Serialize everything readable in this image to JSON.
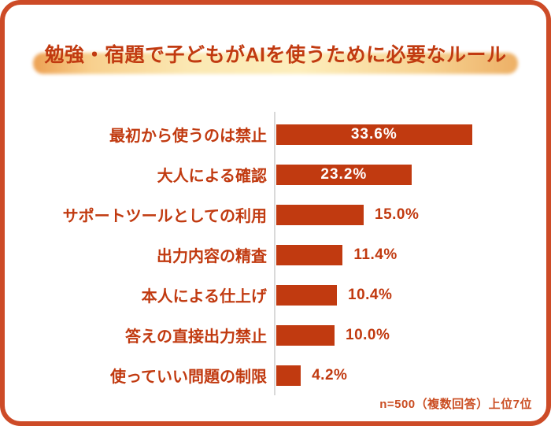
{
  "page": {
    "title": "勉強・宿題で子どもがAIを使うために必要なルール",
    "footnote": "n=500（複数回答）上位7位"
  },
  "chart_data": {
    "type": "bar",
    "orientation": "horizontal",
    "title": "勉強・宿題で子どもがAIを使うために必要なルール",
    "categories": [
      "最初から使うのは禁止",
      "大人による確認",
      "サポートツールとしての利用",
      "出力内容の精査",
      "本人による仕上げ",
      "答えの直接出力禁止",
      "使っていい問題の制限"
    ],
    "values": [
      33.6,
      23.2,
      15.0,
      11.4,
      10.4,
      10.0,
      4.2
    ],
    "value_labels": [
      "33.6%",
      "23.2%",
      "15.0%",
      "11.4%",
      "10.4%",
      "10.0%",
      "4.2%"
    ],
    "xlim": [
      0,
      35
    ],
    "grid": false,
    "legend": false,
    "footnote": "n=500（複数回答）上位7位"
  },
  "colors": {
    "bar": "#c13a10",
    "category_label": "#c13a10",
    "title_text": "#c13a10",
    "value_inside": "#ffffff",
    "value_outside": "#c13a10",
    "border": "#cd4b27",
    "axis_line": "#d9d9d9",
    "footnote_text": "#ca4d22",
    "highlight_orange": "#eda153",
    "highlight_yellow": "#fdeebc"
  }
}
